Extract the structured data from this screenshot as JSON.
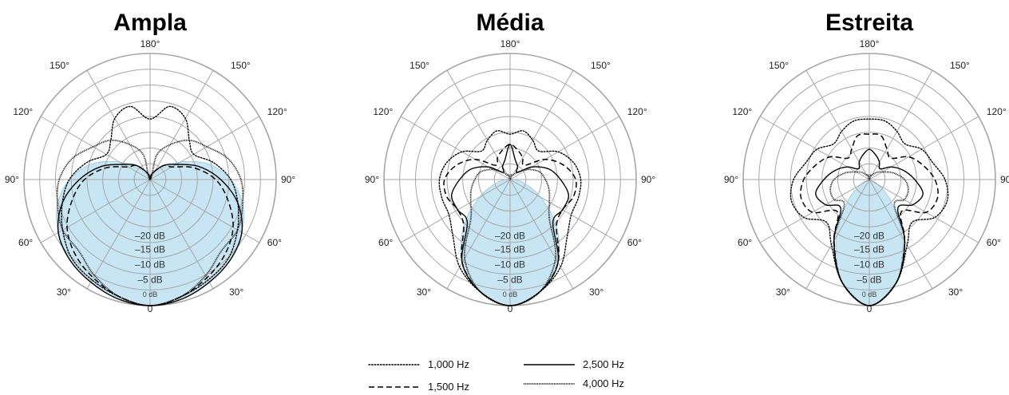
{
  "chart_data": [
    {
      "type": "polar",
      "title": "Ampla",
      "angle_labels": [
        "180°",
        "150°",
        "150°",
        "120°",
        "120°",
        "90°",
        "90°",
        "60°",
        "60°",
        "30°",
        "30°",
        "0"
      ],
      "ring_labels": [
        "0 dB",
        "–5 dB",
        "–10 dB",
        "–15 dB",
        "–20 dB"
      ],
      "rlim": [
        -25,
        0
      ],
      "fill_color": "#bfe1f2",
      "fill_stroke": "#7fbfdf",
      "series": [
        {
          "name": "1,000 Hz",
          "style": "dotted",
          "angles": [
            0,
            15,
            30,
            45,
            60,
            75,
            90,
            105,
            120,
            135,
            150,
            165,
            180
          ],
          "values": [
            0,
            -1,
            -2,
            -3,
            -5,
            -7,
            -9,
            -12,
            -15,
            -14,
            -11,
            -10,
            -13
          ]
        },
        {
          "name": "1,500 Hz",
          "style": "dashed",
          "angles": [
            0,
            15,
            30,
            45,
            60,
            75,
            90,
            105,
            120,
            135,
            150,
            165,
            180
          ],
          "values": [
            0,
            -1,
            -2.5,
            -4,
            -6,
            -9,
            -12,
            -16,
            -20,
            -21,
            -23,
            -24,
            -25
          ]
        },
        {
          "name": "2,500 Hz",
          "style": "solid",
          "angles": [
            0,
            15,
            30,
            45,
            60,
            75,
            90,
            105,
            120,
            135,
            150,
            165,
            180
          ],
          "values": [
            0,
            -0.5,
            -1.5,
            -2.5,
            -4,
            -7,
            -11,
            -15,
            -19,
            -21,
            -23,
            -24,
            -25
          ]
        },
        {
          "name": "4,000 Hz",
          "style": "densedot",
          "angles": [
            0,
            15,
            30,
            45,
            60,
            75,
            90,
            105,
            120,
            135,
            150,
            165,
            180
          ],
          "values": [
            0,
            -1,
            -3,
            -5,
            -5,
            -6,
            -7,
            -9,
            -12,
            -14,
            -17,
            -20,
            -25
          ]
        }
      ],
      "fill_series": {
        "angles": [
          0,
          15,
          30,
          45,
          60,
          75,
          90,
          105,
          120,
          135,
          150,
          165,
          180
        ],
        "values": [
          0,
          -0.5,
          -1.5,
          -2.5,
          -4,
          -6,
          -9,
          -13,
          -18,
          -22,
          -24,
          -25,
          -25
        ]
      }
    },
    {
      "type": "polar",
      "title": "Média",
      "angle_labels": [
        "180°",
        "150°",
        "150°",
        "120°",
        "120°",
        "90°",
        "90°",
        "60°",
        "60°",
        "30°",
        "30°",
        "0"
      ],
      "ring_labels": [
        "0 dB",
        "–5 dB",
        "–10 dB",
        "–15 dB",
        "–20 dB"
      ],
      "rlim": [
        -25,
        0
      ],
      "fill_color": "#bfe1f2",
      "fill_stroke": "#7fbfdf",
      "series": [
        {
          "name": "1,000 Hz",
          "style": "dotted",
          "angles": [
            0,
            15,
            30,
            45,
            60,
            75,
            90,
            105,
            120,
            135,
            150,
            165,
            180
          ],
          "values": [
            0,
            -2,
            -5,
            -9,
            -11,
            -11,
            -11,
            -12,
            -14,
            -17,
            -16,
            -15,
            -16
          ]
        },
        {
          "name": "1,500 Hz",
          "style": "dashed",
          "angles": [
            0,
            15,
            30,
            45,
            60,
            75,
            90,
            105,
            120,
            135,
            150,
            165,
            180
          ],
          "values": [
            0,
            -2,
            -6,
            -12,
            -13,
            -12,
            -12,
            -14,
            -17,
            -21,
            -20,
            -19,
            -18
          ]
        },
        {
          "name": "2,500 Hz",
          "style": "solid",
          "angles": [
            0,
            15,
            30,
            45,
            60,
            75,
            90,
            105,
            120,
            135,
            150,
            165,
            180
          ],
          "values": [
            0,
            -2,
            -6,
            -13,
            -13,
            -13,
            -15,
            -17,
            -20,
            -23,
            -22,
            -21,
            -18
          ]
        },
        {
          "name": "4,000 Hz",
          "style": "densedot",
          "angles": [
            0,
            15,
            30,
            45,
            60,
            75,
            90,
            105,
            120,
            135,
            150,
            165,
            180
          ],
          "values": [
            0,
            -2,
            -7,
            -14,
            -16,
            -17,
            -18,
            -19,
            -21,
            -23,
            -24,
            -24,
            -25
          ]
        }
      ],
      "fill_series": {
        "angles": [
          0,
          15,
          30,
          45,
          60,
          75,
          90,
          105,
          120,
          135,
          150,
          165,
          180
        ],
        "values": [
          0,
          -2,
          -6,
          -12,
          -18,
          -22,
          -24,
          -25,
          -25,
          -25,
          -25,
          -25,
          -25
        ]
      }
    },
    {
      "type": "polar",
      "title": "Estreita",
      "angle_labels": [
        "180°",
        "150°",
        "150°",
        "120°",
        "120°",
        "90°",
        "90°",
        "60°",
        "60°",
        "30°",
        "30°",
        "0"
      ],
      "ring_labels": [
        "0 dB",
        "–5 dB",
        "–10 dB",
        "–15 dB",
        "–20 dB"
      ],
      "rlim": [
        -25,
        0
      ],
      "fill_color": "#bfe1f2",
      "fill_stroke": "#7fbfdf",
      "series": [
        {
          "name": "1,000 Hz",
          "style": "dotted",
          "angles": [
            0,
            15,
            30,
            45,
            60,
            75,
            90,
            105,
            120,
            135,
            150,
            165,
            180
          ],
          "values": [
            0,
            -4,
            -10,
            -13,
            -10,
            -9,
            -10,
            -12,
            -13,
            -15,
            -14,
            -13,
            -13
          ]
        },
        {
          "name": "1,500 Hz",
          "style": "dashed",
          "angles": [
            0,
            15,
            30,
            45,
            60,
            75,
            90,
            105,
            120,
            135,
            150,
            165,
            180
          ],
          "values": [
            0,
            -4,
            -11,
            -16,
            -12,
            -11,
            -12,
            -14,
            -16,
            -19,
            -18,
            -16,
            -16
          ]
        },
        {
          "name": "2,500 Hz",
          "style": "solid",
          "angles": [
            0,
            15,
            30,
            45,
            60,
            75,
            90,
            105,
            120,
            135,
            150,
            165,
            180
          ],
          "values": [
            0,
            -4,
            -11,
            -17,
            -15,
            -14,
            -16,
            -18,
            -20,
            -22,
            -21,
            -20,
            -19
          ]
        },
        {
          "name": "4,000 Hz",
          "style": "densedot",
          "angles": [
            0,
            15,
            30,
            45,
            60,
            75,
            90,
            105,
            120,
            135,
            150,
            165,
            180
          ],
          "values": [
            0,
            -4,
            -11,
            -18,
            -17,
            -17,
            -18,
            -20,
            -22,
            -23,
            -24,
            -24,
            -25
          ]
        }
      ],
      "fill_series": {
        "angles": [
          0,
          15,
          30,
          45,
          60,
          75,
          90,
          105,
          120,
          135,
          150,
          165,
          180
        ],
        "values": [
          0,
          -4,
          -12,
          -19,
          -23,
          -25,
          -25,
          -25,
          -25,
          -25,
          -25,
          -25,
          -25
        ]
      }
    }
  ],
  "legend": {
    "entries": [
      {
        "label": "1,000 Hz",
        "style": "dotted"
      },
      {
        "label": "1,500 Hz",
        "style": "dashed"
      },
      {
        "label": "2,500 Hz",
        "style": "solid"
      },
      {
        "label": "4,000 Hz",
        "style": "densedot"
      }
    ]
  },
  "colors": {
    "grid": "#a6a6a6",
    "line": "#000000"
  }
}
